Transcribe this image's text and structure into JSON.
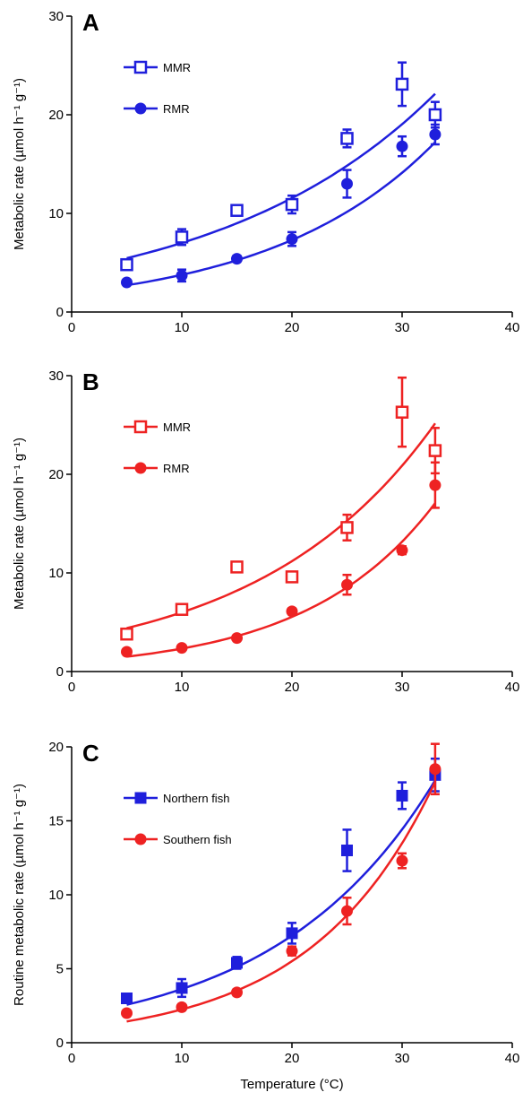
{
  "figure": {
    "x_axis_title": "Temperature (°C)"
  },
  "chart_data": [
    {
      "type": "scatter",
      "panel_label": "A",
      "ylabel": "Metabolic rate (µmol h⁻¹ g⁻¹)",
      "xlabel": "",
      "xlim": [
        0,
        40
      ],
      "ylim": [
        0,
        30
      ],
      "x_ticks": [
        "0",
        "10",
        "20",
        "30",
        "40"
      ],
      "y_ticks": [
        "0",
        "10",
        "20",
        "30"
      ],
      "legend_placement": "top-left",
      "series": [
        {
          "name": "MMR",
          "marker": "open-square",
          "color": "#1f1fdc",
          "x": [
            5,
            10,
            15,
            20,
            25,
            30,
            33
          ],
          "y": [
            4.8,
            7.6,
            10.3,
            10.9,
            17.6,
            23.1,
            20.0
          ],
          "err": [
            0.3,
            0.8,
            0.4,
            0.9,
            0.9,
            2.2,
            1.3
          ],
          "fit": {
            "a": 4.25,
            "b": 0.05
          }
        },
        {
          "name": "RMR",
          "marker": "filled-circle",
          "color": "#1f1fdc",
          "x": [
            5,
            10,
            15,
            20,
            25,
            30,
            33
          ],
          "y": [
            3.0,
            3.7,
            5.4,
            7.4,
            13.0,
            16.8,
            18.0
          ],
          "err": [
            0.2,
            0.6,
            0.3,
            0.7,
            1.4,
            1.0,
            1.0
          ],
          "fit": {
            "a": 1.95,
            "b": 0.066
          }
        }
      ]
    },
    {
      "type": "scatter",
      "panel_label": "B",
      "ylabel": "Metabolic rate (µmol h⁻¹ g⁻¹)",
      "xlabel": "",
      "xlim": [
        0,
        40
      ],
      "ylim": [
        0,
        30
      ],
      "x_ticks": [
        "0",
        "10",
        "20",
        "30",
        "40"
      ],
      "y_ticks": [
        "0",
        "10",
        "20",
        "30"
      ],
      "legend_placement": "top-left",
      "series": [
        {
          "name": "MMR",
          "marker": "open-square",
          "color": "#ee2222",
          "x": [
            5,
            10,
            15,
            20,
            25,
            30,
            33
          ],
          "y": [
            3.8,
            6.3,
            10.6,
            9.6,
            14.6,
            26.3,
            22.4
          ],
          "err": [
            0.3,
            0.4,
            0.4,
            0.5,
            1.3,
            3.5,
            2.3
          ],
          "fit": {
            "a": 3.22,
            "b": 0.0623
          }
        },
        {
          "name": "RMR",
          "marker": "filled-circle",
          "color": "#ee2222",
          "x": [
            5,
            10,
            15,
            20,
            25,
            30,
            33
          ],
          "y": [
            2.0,
            2.4,
            3.4,
            6.1,
            8.8,
            12.3,
            18.9
          ],
          "err": [
            0.2,
            0.2,
            0.2,
            0.3,
            1.0,
            0.4,
            2.3
          ],
          "fit": {
            "a": 0.98,
            "b": 0.0866
          }
        }
      ]
    },
    {
      "type": "scatter",
      "panel_label": "C",
      "ylabel": "Routine metabolic rate (µmol h⁻¹ g⁻¹)",
      "xlabel": "Temperature (°C)",
      "xlim": [
        0,
        40
      ],
      "ylim": [
        0,
        20
      ],
      "x_ticks": [
        "0",
        "10",
        "20",
        "30",
        "40"
      ],
      "y_ticks": [
        "0",
        "5",
        "10",
        "15",
        "20"
      ],
      "legend_placement": "top-left",
      "series": [
        {
          "name": "Northern fish",
          "marker": "filled-square",
          "color": "#1f1fdc",
          "x": [
            5,
            10,
            15,
            20,
            25,
            30,
            33
          ],
          "y": [
            3.0,
            3.7,
            5.4,
            7.4,
            13.0,
            16.7,
            18.1
          ],
          "err": [
            0.2,
            0.6,
            0.4,
            0.7,
            1.4,
            0.9,
            1.1
          ],
          "fit": {
            "a": 1.82,
            "b": 0.069
          }
        },
        {
          "name": "Southern fish",
          "marker": "filled-circle",
          "color": "#ee2222",
          "x": [
            5,
            10,
            15,
            20,
            25,
            30,
            33
          ],
          "y": [
            2.0,
            2.4,
            3.4,
            6.2,
            8.9,
            12.3,
            18.5
          ],
          "err": [
            0.1,
            0.2,
            0.2,
            0.3,
            0.9,
            0.5,
            1.7
          ],
          "fit": {
            "a": 0.92,
            "b": 0.0895
          }
        }
      ]
    }
  ]
}
